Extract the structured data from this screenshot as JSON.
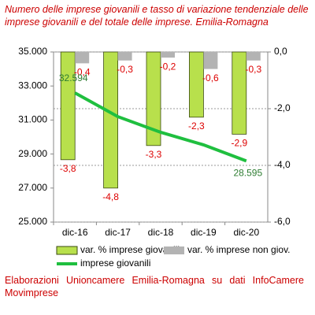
{
  "chart_data": {
    "type": "bar-line",
    "title": "Numero delle imprese giovanili e tasso di variazione tendenziale delle imprese giovanili e del totale delle imprese. Emilia-Romagna",
    "source": "Elaborazioni Unioncamere Emilia-Romagna su dati InfoCamere Movimprese",
    "categories": [
      "dic-16",
      "dic-17",
      "dic-18",
      "dic-19",
      "dic-20"
    ],
    "series": [
      {
        "name": "var. % imprese giovanili",
        "type": "bar",
        "axis": "y2",
        "color": "#b8e04c",
        "values": [
          -3.8,
          -4.8,
          -3.3,
          -2.3,
          -2.9
        ],
        "value_labels": [
          "-3,8",
          "-4,8",
          "-3,3",
          "-2,3",
          "-2,9"
        ]
      },
      {
        "name": "var. % imprese non giov.",
        "type": "bar",
        "axis": "y2",
        "color": "#b3b3b3",
        "values": [
          -0.4,
          -0.3,
          -0.2,
          -0.6,
          -0.3
        ],
        "value_labels": [
          "-0,4",
          "-0,3",
          "-0,2",
          "-0,6",
          "-0,3"
        ]
      },
      {
        "name": "imprese giovanili",
        "type": "line",
        "color": "#1fbf3f",
        "values": [
          32594,
          31200,
          30280,
          29540,
          28595
        ],
        "value_labels": [
          "32.594",
          null,
          null,
          null,
          "28.595"
        ]
      }
    ],
    "ylim": [
      25000,
      35000
    ],
    "yticks": [
      {
        "value": 25000,
        "label": "25.000"
      },
      {
        "value": 27000,
        "label": "27.000"
      },
      {
        "value": 29000,
        "label": "29.000"
      },
      {
        "value": 31000,
        "label": "31.000"
      },
      {
        "value": 33000,
        "label": "33.000"
      },
      {
        "value": 35000,
        "label": "35.000"
      }
    ],
    "y2lim": [
      -6,
      0
    ],
    "y2ticks": [
      {
        "value": -6,
        "label": "-6,0"
      },
      {
        "value": -4,
        "label": "-4,0"
      },
      {
        "value": -2,
        "label": "-2,0"
      },
      {
        "value": 0,
        "label": "0,0"
      }
    ],
    "grid": true
  }
}
